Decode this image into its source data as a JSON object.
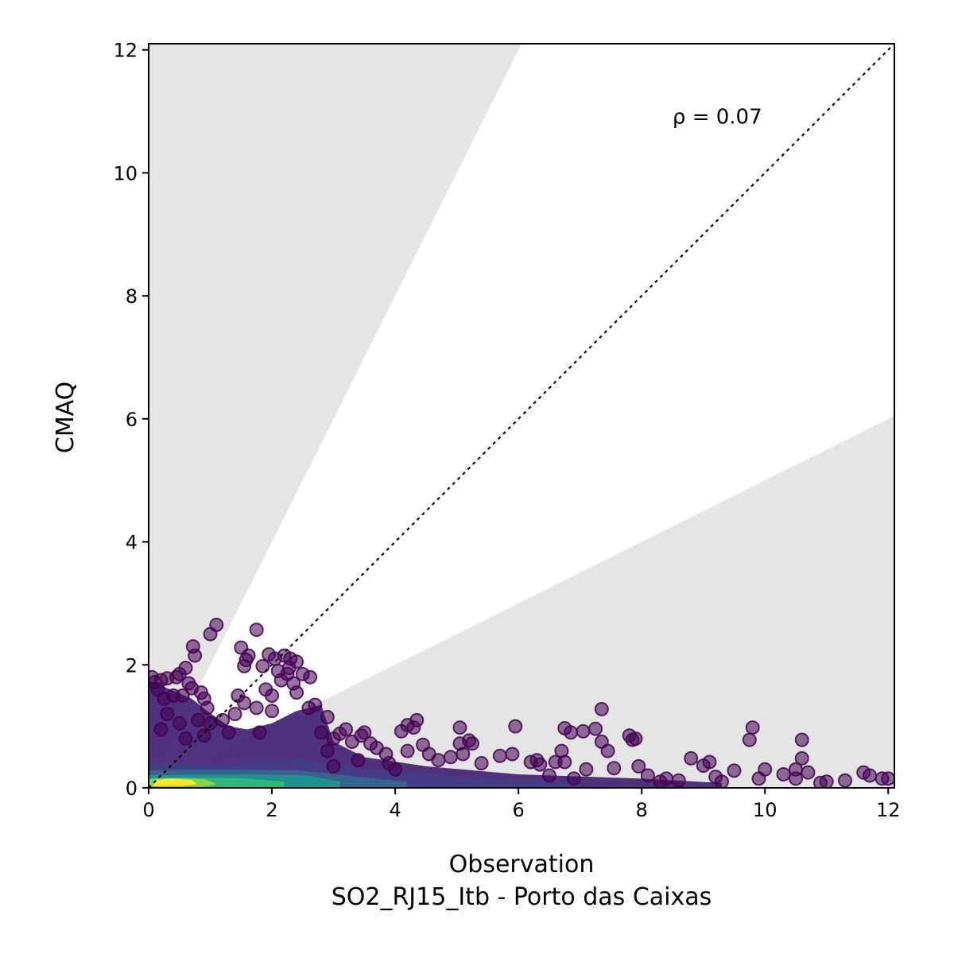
{
  "chart_data": {
    "type": "scatter",
    "title": "",
    "xlabel": "Observation",
    "xlabel_sub": "SO2_RJ15_Itb - Porto das Caixas",
    "ylabel": "CMAQ",
    "xlim": [
      0,
      12.1
    ],
    "ylim": [
      0,
      12.1
    ],
    "xticks": [
      0,
      2,
      4,
      6,
      8,
      10,
      12
    ],
    "yticks": [
      0,
      2,
      4,
      6,
      8,
      10,
      12
    ],
    "grid": false,
    "reference_line": {
      "style": "dotted",
      "slope": 1,
      "color": "#000000"
    },
    "shaded_regions": [
      {
        "description": "model > 2x observation",
        "lower_slope": 2,
        "color": "#e5e5e5"
      },
      {
        "description": "model < 0.5x observation",
        "upper_slope": 0.5,
        "color": "#e5e5e5"
      }
    ],
    "annotation": {
      "text": "ρ = 0.07",
      "x": 8.5,
      "y": 10.8
    },
    "colormap": "viridis",
    "point_color": "#440154",
    "points": [
      [
        1.1,
        2.65
      ],
      [
        1.0,
        2.5
      ],
      [
        0.72,
        2.3
      ],
      [
        0.75,
        2.15
      ],
      [
        0.6,
        1.95
      ],
      [
        0.5,
        1.85
      ],
      [
        0.45,
        1.8
      ],
      [
        0.3,
        1.78
      ],
      [
        0.2,
        1.75
      ],
      [
        0.05,
        1.8
      ],
      [
        0.1,
        1.72
      ],
      [
        0.15,
        1.6
      ],
      [
        0.65,
        1.7
      ],
      [
        0.7,
        1.62
      ],
      [
        0.55,
        1.5
      ],
      [
        0.9,
        1.45
      ],
      [
        0.85,
        1.55
      ],
      [
        0.4,
        1.5
      ],
      [
        0.25,
        1.45
      ],
      [
        1.75,
        2.57
      ],
      [
        1.5,
        2.28
      ],
      [
        1.62,
        2.15
      ],
      [
        1.58,
        2.08
      ],
      [
        1.95,
        2.17
      ],
      [
        2.05,
        2.1
      ],
      [
        1.55,
        1.98
      ],
      [
        1.85,
        1.98
      ],
      [
        2.3,
        2.1
      ],
      [
        2.4,
        2.05
      ],
      [
        2.2,
        2.15
      ],
      [
        2.28,
        1.95
      ],
      [
        2.1,
        1.9
      ],
      [
        2.25,
        1.85
      ],
      [
        2.5,
        1.85
      ],
      [
        2.62,
        1.8
      ],
      [
        2.15,
        1.75
      ],
      [
        2.35,
        1.7
      ],
      [
        1.9,
        1.6
      ],
      [
        2.0,
        1.5
      ],
      [
        2.4,
        1.55
      ],
      [
        1.45,
        1.5
      ],
      [
        1.55,
        1.38
      ],
      [
        1.75,
        1.3
      ],
      [
        2.0,
        1.25
      ],
      [
        2.6,
        1.3
      ],
      [
        2.7,
        1.35
      ],
      [
        1.4,
        1.2
      ],
      [
        1.2,
        1.1
      ],
      [
        1.0,
        1.05
      ],
      [
        3.2,
        0.95
      ],
      [
        3.1,
        0.88
      ],
      [
        3.0,
        0.8
      ],
      [
        3.5,
        0.9
      ],
      [
        3.45,
        0.85
      ],
      [
        3.3,
        0.75
      ],
      [
        3.6,
        0.72
      ],
      [
        3.7,
        0.65
      ],
      [
        3.85,
        0.55
      ],
      [
        4.1,
        0.92
      ],
      [
        4.2,
        1.02
      ],
      [
        4.35,
        1.1
      ],
      [
        4.3,
        0.98
      ],
      [
        4.2,
        0.6
      ],
      [
        4.45,
        0.7
      ],
      [
        4.55,
        0.55
      ],
      [
        4.7,
        0.45
      ],
      [
        4.9,
        0.5
      ],
      [
        5.05,
        0.98
      ],
      [
        5.05,
        0.72
      ],
      [
        5.2,
        0.77
      ],
      [
        5.25,
        0.72
      ],
      [
        5.1,
        0.55
      ],
      [
        5.4,
        0.4
      ],
      [
        5.7,
        0.52
      ],
      [
        5.9,
        0.55
      ],
      [
        5.95,
        1.0
      ],
      [
        6.2,
        0.42
      ],
      [
        6.35,
        0.38
      ],
      [
        6.3,
        0.45
      ],
      [
        6.6,
        0.42
      ],
      [
        6.7,
        0.6
      ],
      [
        6.75,
        0.97
      ],
      [
        6.85,
        0.9
      ],
      [
        6.75,
        0.42
      ],
      [
        7.05,
        0.92
      ],
      [
        7.25,
        0.96
      ],
      [
        7.35,
        1.28
      ],
      [
        7.35,
        0.75
      ],
      [
        7.45,
        0.6
      ],
      [
        7.55,
        0.32
      ],
      [
        7.1,
        0.3
      ],
      [
        7.8,
        0.85
      ],
      [
        7.85,
        0.78
      ],
      [
        7.9,
        0.8
      ],
      [
        7.95,
        0.35
      ],
      [
        8.1,
        0.2
      ],
      [
        8.4,
        0.15
      ],
      [
        8.6,
        0.12
      ],
      [
        8.8,
        0.48
      ],
      [
        9.0,
        0.36
      ],
      [
        9.1,
        0.42
      ],
      [
        9.2,
        0.18
      ],
      [
        9.5,
        0.28
      ],
      [
        9.75,
        0.78
      ],
      [
        9.8,
        0.98
      ],
      [
        9.9,
        0.15
      ],
      [
        10.0,
        0.3
      ],
      [
        10.3,
        0.22
      ],
      [
        10.5,
        0.3
      ],
      [
        10.6,
        0.78
      ],
      [
        10.6,
        0.48
      ],
      [
        10.7,
        0.25
      ],
      [
        10.5,
        0.15
      ],
      [
        11.0,
        0.1
      ],
      [
        11.3,
        0.12
      ],
      [
        11.6,
        0.25
      ],
      [
        11.7,
        0.2
      ],
      [
        11.9,
        0.15
      ],
      [
        12.0,
        0.15
      ],
      [
        10.9,
        0.08
      ],
      [
        9.3,
        0.1
      ],
      [
        8.3,
        0.1
      ],
      [
        6.9,
        0.15
      ],
      [
        6.5,
        0.2
      ],
      [
        3.9,
        0.4
      ],
      [
        4.0,
        0.3
      ],
      [
        3.4,
        0.45
      ],
      [
        3.0,
        0.35
      ],
      [
        2.9,
        0.6
      ],
      [
        2.8,
        0.9
      ],
      [
        2.9,
        1.15
      ],
      [
        1.3,
        0.9
      ],
      [
        1.8,
        0.9
      ],
      [
        0.9,
        0.85
      ],
      [
        0.6,
        0.8
      ],
      [
        0.95,
        1.3
      ],
      [
        0.3,
        1.2
      ],
      [
        0.5,
        1.05
      ],
      [
        0.2,
        0.95
      ],
      [
        0.8,
        1.1
      ]
    ],
    "clusters": [
      {
        "shape": "polygon",
        "color": "#482777",
        "opacity": 0.95,
        "polygon": [
          [
            0,
            0
          ],
          [
            0,
            1.75
          ],
          [
            0.3,
            1.62
          ],
          [
            0.7,
            1.45
          ],
          [
            0.95,
            1.25
          ],
          [
            1.3,
            1.0
          ],
          [
            1.6,
            0.95
          ],
          [
            2.0,
            1.05
          ],
          [
            2.4,
            1.25
          ],
          [
            2.8,
            1.35
          ],
          [
            3.0,
            0.75
          ],
          [
            3.5,
            0.5
          ],
          [
            4.5,
            0.35
          ],
          [
            6,
            0.22
          ],
          [
            8,
            0.15
          ],
          [
            9.3,
            0.08
          ],
          [
            9.3,
            0
          ],
          [
            0,
            0
          ]
        ]
      },
      {
        "shape": "polygon",
        "color": "#433e85",
        "opacity": 0.9,
        "polygon": [
          [
            0,
            0
          ],
          [
            0,
            0.42
          ],
          [
            0.6,
            0.4
          ],
          [
            1.5,
            0.42
          ],
          [
            2.5,
            0.48
          ],
          [
            3.0,
            0.35
          ],
          [
            4.2,
            0.25
          ],
          [
            5.5,
            0.15
          ],
          [
            7,
            0.08
          ],
          [
            7,
            0
          ],
          [
            0,
            0
          ]
        ]
      },
      {
        "shape": "polygon",
        "color": "#31688e",
        "opacity": 0.9,
        "polygon": [
          [
            0,
            0
          ],
          [
            0,
            0.28
          ],
          [
            0.5,
            0.3
          ],
          [
            1.5,
            0.3
          ],
          [
            2.5,
            0.28
          ],
          [
            3.4,
            0.18
          ],
          [
            4.2,
            0.1
          ],
          [
            4.2,
            0
          ],
          [
            0,
            0
          ]
        ]
      },
      {
        "shape": "polygon",
        "color": "#21918c",
        "opacity": 0.95,
        "polygon": [
          [
            0,
            0
          ],
          [
            0,
            0.2
          ],
          [
            0.8,
            0.22
          ],
          [
            1.6,
            0.22
          ],
          [
            2.6,
            0.2
          ],
          [
            3.1,
            0.1
          ],
          [
            3.1,
            0
          ],
          [
            0,
            0
          ]
        ]
      },
      {
        "shape": "polygon",
        "color": "#35b779",
        "opacity": 0.95,
        "polygon": [
          [
            0,
            0
          ],
          [
            0,
            0.16
          ],
          [
            0.6,
            0.17
          ],
          [
            1.5,
            0.16
          ],
          [
            2.2,
            0.1
          ],
          [
            2.2,
            0
          ],
          [
            0,
            0
          ]
        ]
      },
      {
        "shape": "polygon",
        "color": "#8fd744",
        "opacity": 0.95,
        "polygon": [
          [
            0,
            0.02
          ],
          [
            0,
            0.14
          ],
          [
            0.4,
            0.16
          ],
          [
            0.9,
            0.14
          ],
          [
            1.1,
            0.06
          ],
          [
            0.9,
            0.02
          ],
          [
            0,
            0.02
          ]
        ]
      },
      {
        "shape": "polygon",
        "color": "#fde725",
        "opacity": 1.0,
        "polygon": [
          [
            0.08,
            0.03
          ],
          [
            0.1,
            0.13
          ],
          [
            0.35,
            0.15
          ],
          [
            0.7,
            0.13
          ],
          [
            0.78,
            0.06
          ],
          [
            0.55,
            0.03
          ],
          [
            0.08,
            0.03
          ]
        ]
      }
    ]
  }
}
